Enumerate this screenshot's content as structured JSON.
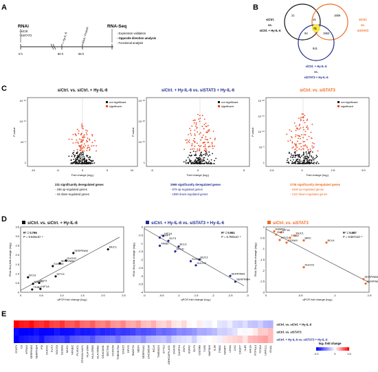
{
  "panels": {
    "A": "A",
    "B": "B",
    "C": "C",
    "D": "D",
    "E": "E"
  },
  "timeline": {
    "rnai": "RNAi",
    "rnai_items": [
      "- siCtrl.",
      "- siSTAT3"
    ],
    "hy": "+ Hy-IL-6",
    "harvest": "RNA / Protein",
    "rnaseq": "RNA-Seq",
    "times": [
      "0 h",
      "80 h",
      "96 h"
    ],
    "steps": [
      "- Expression validation",
      "- Opposite direction analysis",
      "- Functional analysis"
    ]
  },
  "venn": {
    "label_left": [
      "siCtrl.",
      "vs.",
      "siCtrl. + Hy-IL-6"
    ],
    "label_right": [
      "siCtrl.",
      "vs.",
      "siSTAT3"
    ],
    "label_bottom": [
      "siCtrl. + Hy-IL-6",
      "vs.",
      "siSTAT3 + Hy-IL-6"
    ],
    "counts": {
      "left_only": "21",
      "right_only": "1659",
      "left_right": "45",
      "center": "71",
      "left_bottom": "94",
      "right_bottom": "1963",
      "bottom_only": "841"
    },
    "colors": {
      "left": "#111111",
      "right": "#f06a1f",
      "bottom": "#1f2a8c",
      "center": "#f5e64a"
    }
  },
  "volcano": [
    {
      "title": "siCtrl. vs. siCtrl. + Hy-IL-6",
      "title_color": "#111111",
      "xlabel": "Fold change (log₂)",
      "ylabel": "P-value",
      "xticks": [
        "-10",
        "-5",
        "0",
        "5",
        "10"
      ],
      "yticks": [
        "10⁻¹⁵",
        "10⁻¹⁰",
        "10⁻⁵",
        "1"
      ],
      "legend": [
        "not significant",
        "significant"
      ],
      "summary": [
        "231 significantly deregulated genes",
        "- 188 up-regulated genes",
        "- 43 down-regulated genes"
      ]
    },
    {
      "title": "siCtrl. + Hy-IL-6  vs. siSTAT3 + Hy-IL-6",
      "title_color": "#1f2a8c",
      "xlabel": "Fold change (log₂)",
      "ylabel": "P-value",
      "xticks": [
        "-5",
        "0",
        "5"
      ],
      "yticks": [
        "10⁻³⁰",
        "10⁻²⁰",
        "10⁻¹⁰",
        "1"
      ],
      "legend": [
        "not significant",
        "significant"
      ],
      "summary": [
        "2969 significantly deregulated genes",
        "- 979 up-regulated genes",
        "- 1990 down-regulated genes"
      ]
    },
    {
      "title": "siCtrl. vs. siSTAT3",
      "title_color": "#f06a1f",
      "xlabel": "Fold change (log₂)",
      "ylabel": "P-value",
      "xticks": [
        "-2.5",
        "0",
        "2.5",
        "5.0"
      ],
      "yticks": [
        "10⁻²⁰",
        "10⁻¹⁵",
        "10⁻¹⁰",
        "10⁻⁵",
        "1"
      ],
      "legend": [
        "not significant",
        "significant"
      ],
      "summary": [
        "3738 significantly deregulated genes",
        "- 1628 up-regulated genes",
        "- 2110 down-regulated genes"
      ]
    }
  ],
  "chart_data": [
    {
      "type": "scatter",
      "title": "siCtrl. vs. siCtrl. + Hy-IL-6",
      "xlabel": "qPCR fold change (log₂)",
      "ylabel": "RNA-Seq fold change (log₂)",
      "xlim": [
        0,
        2.5
      ],
      "ylim": [
        0,
        3.5
      ],
      "xticks": [
        "0",
        "0.5",
        "1.0",
        "1.5",
        "2.0",
        "2.5"
      ],
      "yticks": [
        "0",
        "0.5",
        "1.0",
        "1.5",
        "2.0",
        "2.5",
        "3.0",
        "3.5"
      ],
      "r2": "R² = 0.796",
      "p": "P = 9.545x10⁻⁵",
      "points": [
        {
          "label": "MUC1",
          "x": 2.12,
          "y": 2.3
        },
        {
          "label": "SERPINB4",
          "x": 1.28,
          "y": 2.1
        },
        {
          "label": "DUOX2",
          "x": 1.1,
          "y": 1.7
        },
        {
          "label": "SERPINB3",
          "x": 0.95,
          "y": 1.55
        },
        {
          "label": "S100A9",
          "x": 0.78,
          "y": 1.4
        },
        {
          "label": "DPYD",
          "x": 0.85,
          "y": 0.85
        },
        {
          "label": "BCL6",
          "x": 0.18,
          "y": 0.8
        },
        {
          "label": "NAMPT",
          "x": 0.3,
          "y": 0.45
        },
        {
          "label": "ELF3",
          "x": 0.45,
          "y": 0.5
        },
        {
          "label": "TRIB2",
          "x": 0.28,
          "y": 0.15
        },
        {
          "label": "HIF1A",
          "x": 0.48,
          "y": 0.18
        }
      ],
      "fit": [
        [
          0,
          0.1
        ],
        [
          2.4,
          2.95
        ]
      ]
    },
    {
      "type": "scatter",
      "title": "siCtrl. + Hy-IL-6 vs. siSTAT3 + Hy-IL-6",
      "xlabel": "qPCR fold change (log₂)",
      "ylabel": "RNA-Seq fold change (log₂)",
      "xlim": [
        -3,
        0
      ],
      "ylim": [
        -4,
        0
      ],
      "xticks": [
        "-0",
        "-0.5",
        "-1",
        "-1.5",
        "-2",
        "-2.5",
        "-3"
      ],
      "yticks": [
        "0",
        "-0.5",
        "-1",
        "-1.5",
        "-2",
        "-2.5",
        "-3",
        "-3.5",
        "-4"
      ],
      "r2": "R² = 0.951",
      "p": "P = 6.780x10⁻⁶",
      "points": [
        {
          "label": "NAMPT",
          "x": -0.45,
          "y": -0.65
        },
        {
          "label": "HIF1A",
          "x": -0.55,
          "y": -0.55
        },
        {
          "label": "ELF3",
          "x": -0.7,
          "y": -0.85
        },
        {
          "label": "TRIB2",
          "x": -0.45,
          "y": -1.15
        },
        {
          "label": "BCL6",
          "x": -1.0,
          "y": -1.2
        },
        {
          "label": "DPYD",
          "x": -0.9,
          "y": -1.5
        },
        {
          "label": "S100A9",
          "x": -1.35,
          "y": -2.1
        },
        {
          "label": "MUC1",
          "x": -1.6,
          "y": -2.0
        },
        {
          "label": "DUOX2",
          "x": -1.5,
          "y": -2.35
        },
        {
          "label": "SERPINB3",
          "x": -2.5,
          "y": -3.0
        },
        {
          "label": "SERPINB4",
          "x": -2.65,
          "y": -3.35
        }
      ],
      "fit": [
        [
          0,
          -0.1
        ],
        [
          -2.9,
          -3.6
        ]
      ]
    },
    {
      "type": "scatter",
      "title": "siCtrl. vs. siSTAT3",
      "xlabel": "qPCR fold change (log₂)",
      "ylabel": "RNA-Seq fold change (log₂)",
      "xlim": [
        -1.5,
        0
      ],
      "ylim": [
        -3,
        0
      ],
      "xticks": [
        "0",
        "-0.5",
        "-1",
        "-1.5"
      ],
      "yticks": [
        "0",
        "-0.5",
        "-1",
        "-1.5",
        "-2",
        "-2.5",
        "-3"
      ],
      "r2": "R² = 0.687",
      "p": "P = 8.667x10⁻³",
      "points": [
        {
          "label": "NAMPT",
          "x": -0.12,
          "y": -0.2
        },
        {
          "label": "HIF1A",
          "x": -0.22,
          "y": -0.25
        },
        {
          "label": "ELF3",
          "x": -0.15,
          "y": -0.35
        },
        {
          "label": "TRIB2",
          "x": -0.35,
          "y": -0.5
        },
        {
          "label": "MUC1",
          "x": -0.42,
          "y": -0.4
        },
        {
          "label": "DPYD",
          "x": -0.2,
          "y": -0.6
        },
        {
          "label": "S100A9",
          "x": -0.3,
          "y": -0.72
        },
        {
          "label": "BIRC",
          "x": -0.55,
          "y": -0.62
        },
        {
          "label": "BCL6",
          "x": -0.88,
          "y": -0.72
        },
        {
          "label": "DUOX2",
          "x": -0.55,
          "y": -1.85
        },
        {
          "label": "SERPINB3",
          "x": -1.42,
          "y": -2.4
        },
        {
          "label": "SERPINB4",
          "x": -1.45,
          "y": -2.6
        }
      ],
      "fit": [
        [
          0,
          -0.1
        ],
        [
          -1.5,
          -2.55
        ]
      ]
    }
  ],
  "heatmap": {
    "rows": [
      "siCtrl. vs. siCtrl. + Hy-IL-6",
      "siCtrl. vs. siSTAT3",
      "siCtrl. + Hy-IL-6 vs. siSTAT3 + Hy-IL-6"
    ],
    "row_colors": [
      "#111111",
      "#111111",
      "#1f2a8c"
    ],
    "genes": [
      "STAT3",
      "C3",
      "HTRA3",
      "SERPINB3",
      "SERPINB4",
      "PI3",
      "DUOX2",
      "FUT2",
      "SOCS3",
      "S100A9",
      "MUC1",
      "NFKBIZ",
      "PLXDC1",
      "ST6GALNAC1",
      "HLA-DRA",
      "HLA-DRB5",
      "HLA-DRB1",
      "CEACAM1",
      "SECTM1",
      "CCDC69",
      "TMEM176A",
      "GNA15",
      "DPYD",
      "RAB27A",
      "SBSN",
      "SERPINA1",
      "LINC00536",
      "BCL6",
      "TMEM119",
      "SYT12",
      "ARHGAP5-AS1",
      "DHX40",
      "CASP10",
      "ZNF1",
      "SSFA2",
      "ELF3",
      "GSDMB",
      "TLR5",
      "MAP3K6",
      "IL1B",
      "TRIB2",
      "NAMPT",
      "LDHA",
      "LIX1",
      "CASP7",
      "IL4R",
      "HIF1A",
      "PTPN14",
      "TSTA3",
      "UAP1L1",
      "GNAL"
    ],
    "legend_title": "log₂ fold change",
    "legend_ticks": [
      "-2.0",
      "0",
      "1.5"
    ]
  }
}
